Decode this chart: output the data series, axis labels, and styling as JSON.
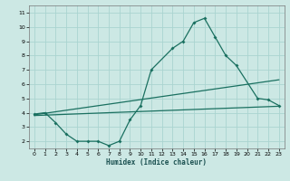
{
  "xlabel": "Humidex (Indice chaleur)",
  "ylabel": "",
  "bg_color": "#cce8e4",
  "grid_color": "#aad4d0",
  "line_color": "#1a7060",
  "xlim": [
    -0.5,
    23.5
  ],
  "ylim": [
    1.5,
    11.5
  ],
  "xticks": [
    0,
    1,
    2,
    3,
    4,
    5,
    6,
    7,
    8,
    9,
    10,
    11,
    12,
    13,
    14,
    15,
    16,
    17,
    18,
    19,
    20,
    21,
    22,
    23
  ],
  "yticks": [
    2,
    3,
    4,
    5,
    6,
    7,
    8,
    9,
    10,
    11
  ],
  "line1_x": [
    0,
    1,
    2,
    3,
    4,
    5,
    6,
    7,
    8,
    9,
    10,
    11,
    13,
    14,
    15,
    16,
    17,
    18,
    19,
    21,
    22,
    23
  ],
  "line1_y": [
    3.9,
    4.0,
    3.3,
    2.5,
    2.0,
    2.0,
    2.0,
    1.7,
    2.0,
    3.5,
    4.5,
    7.0,
    8.5,
    9.0,
    10.3,
    10.6,
    9.3,
    8.0,
    7.3,
    5.0,
    4.9,
    4.5
  ],
  "line2_x": [
    0,
    23
  ],
  "line2_y": [
    3.85,
    6.3
  ],
  "line3_x": [
    0,
    23
  ],
  "line3_y": [
    3.8,
    4.45
  ]
}
